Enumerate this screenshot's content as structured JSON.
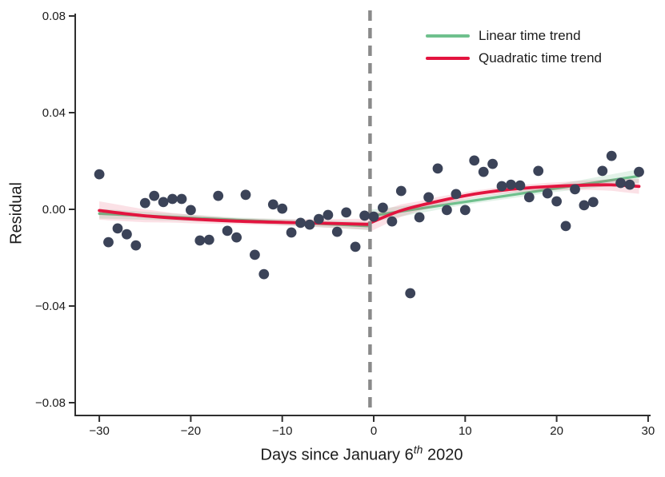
{
  "figure": {
    "ylabel": "Residual",
    "xlabel": {
      "prefix": "Days since January 6",
      "superscript": "th",
      "suffix": " 2020"
    }
  },
  "legend": {
    "items": [
      {
        "label": "Linear time trend",
        "color": "#6fc08d"
      },
      {
        "label": "Quadratic time trend",
        "color": "#e3143f"
      }
    ]
  },
  "chart_data": {
    "type": "scatter",
    "title": "",
    "xlabel": "Days since January 6th 2020",
    "ylabel": "Residual",
    "xlim": [
      -32.6,
      30.4
    ],
    "ylim": [
      -0.0853,
      0.082
    ],
    "grid": false,
    "legend_position": "upper right",
    "x_ticks": {
      "values": [
        -30,
        -20,
        -10,
        0,
        10,
        20,
        30
      ],
      "labels": [
        "−30",
        "−20",
        "−10",
        "0",
        "10",
        "20",
        "30"
      ]
    },
    "y_ticks": {
      "values": [
        -0.08,
        -0.04,
        0,
        0.04,
        0.08
      ],
      "labels": [
        "−0.08",
        "−0.04",
        "0.00",
        "0.04",
        "0.08"
      ]
    },
    "cutoff_line": {
      "x": -0.4,
      "color": "#8a8a8a",
      "style": "dashed"
    },
    "scatter": {
      "color": "#3b4358",
      "points": [
        [
          -30,
          0.0145
        ],
        [
          -29,
          -0.0136
        ],
        [
          -28,
          -0.0079
        ],
        [
          -27,
          -0.0103
        ],
        [
          -26,
          -0.0149
        ],
        [
          -25,
          0.0026
        ],
        [
          -24,
          0.0056
        ],
        [
          -23,
          0.003
        ],
        [
          -22,
          0.0043
        ],
        [
          -21,
          0.0043
        ],
        [
          -20,
          -0.0003
        ],
        [
          -19,
          -0.0129
        ],
        [
          -18,
          -0.0126
        ],
        [
          -17,
          0.0056
        ],
        [
          -16,
          -0.0089
        ],
        [
          -15,
          -0.0116
        ],
        [
          -14,
          0.006
        ],
        [
          -13,
          -0.0188
        ],
        [
          -12,
          -0.0268
        ],
        [
          -11,
          0.002
        ],
        [
          -10,
          0.0003
        ],
        [
          -9,
          -0.0096
        ],
        [
          -8,
          -0.0056
        ],
        [
          -7,
          -0.0063
        ],
        [
          -6,
          -0.004
        ],
        [
          -5,
          -0.0023
        ],
        [
          -4,
          -0.0093
        ],
        [
          -3,
          -0.0013
        ],
        [
          -2,
          -0.0155
        ],
        [
          -1,
          -0.0026
        ],
        [
          0,
          -0.003
        ],
        [
          1,
          0.0007
        ],
        [
          2,
          -0.005
        ],
        [
          3,
          0.0076
        ],
        [
          4,
          -0.0347
        ],
        [
          5,
          -0.0033
        ],
        [
          6,
          0.005
        ],
        [
          7,
          0.0169
        ],
        [
          8,
          -0.0003
        ],
        [
          9,
          0.0063
        ],
        [
          10,
          -0.0003
        ],
        [
          11,
          0.0202
        ],
        [
          12,
          0.0155
        ],
        [
          13,
          0.0188
        ],
        [
          14,
          0.0096
        ],
        [
          15,
          0.0102
        ],
        [
          16,
          0.0099
        ],
        [
          17,
          0.005
        ],
        [
          18,
          0.0159
        ],
        [
          19,
          0.0066
        ],
        [
          20,
          0.0033
        ],
        [
          21,
          -0.0069
        ],
        [
          22,
          0.0083
        ],
        [
          23,
          0.0017
        ],
        [
          24,
          0.003
        ],
        [
          25,
          0.0159
        ],
        [
          26,
          0.0221
        ],
        [
          27,
          0.0109
        ],
        [
          28,
          0.0102
        ],
        [
          29,
          0.0155
        ]
      ]
    },
    "trends": {
      "linear": {
        "name": "Linear time trend",
        "color": "#6fc08d",
        "left": [
          [
            -30,
            -0.0018
          ],
          [
            -0.5,
            -0.0069
          ]
        ],
        "right": [
          [
            -0.5,
            -0.0028
          ],
          [
            29,
            0.0138
          ]
        ],
        "band_left": [
          [
            -30,
            0.002
          ],
          [
            -15,
            0.001
          ],
          [
            -0.5,
            0.0017
          ]
        ],
        "band_right": [
          [
            -0.5,
            0.0026
          ],
          [
            10,
            0.0012
          ],
          [
            20,
            0.0015
          ],
          [
            29,
            0.0028
          ]
        ]
      },
      "quadratic": {
        "name": "Quadratic time trend",
        "color": "#e3143f",
        "left": [
          [
            -30,
            -0.0005
          ],
          [
            -25,
            -0.0027
          ],
          [
            -20,
            -0.004
          ],
          [
            -15,
            -0.0049
          ],
          [
            -10,
            -0.0054
          ],
          [
            -5,
            -0.0058
          ],
          [
            -0.5,
            -0.0062
          ]
        ],
        "right": [
          [
            -0.5,
            -0.0058
          ],
          [
            3,
            -0.0005
          ],
          [
            7,
            0.0033
          ],
          [
            11,
            0.0063
          ],
          [
            15,
            0.0083
          ],
          [
            19,
            0.0094
          ],
          [
            23,
            0.01
          ],
          [
            26,
            0.0101
          ],
          [
            29,
            0.0095
          ]
        ],
        "band_left": [
          [
            -30,
            0.0038
          ],
          [
            -22,
            0.002
          ],
          [
            -15,
            0.0012
          ],
          [
            -8,
            0.0014
          ],
          [
            -0.5,
            0.0023
          ]
        ],
        "band_right": [
          [
            -0.5,
            0.0036
          ],
          [
            5,
            0.002
          ],
          [
            12,
            0.0014
          ],
          [
            20,
            0.0016
          ],
          [
            25,
            0.0022
          ],
          [
            29,
            0.0031
          ]
        ]
      }
    },
    "axis_color": "#2e2e2e",
    "tick_label_color": "#1b1b1b"
  }
}
